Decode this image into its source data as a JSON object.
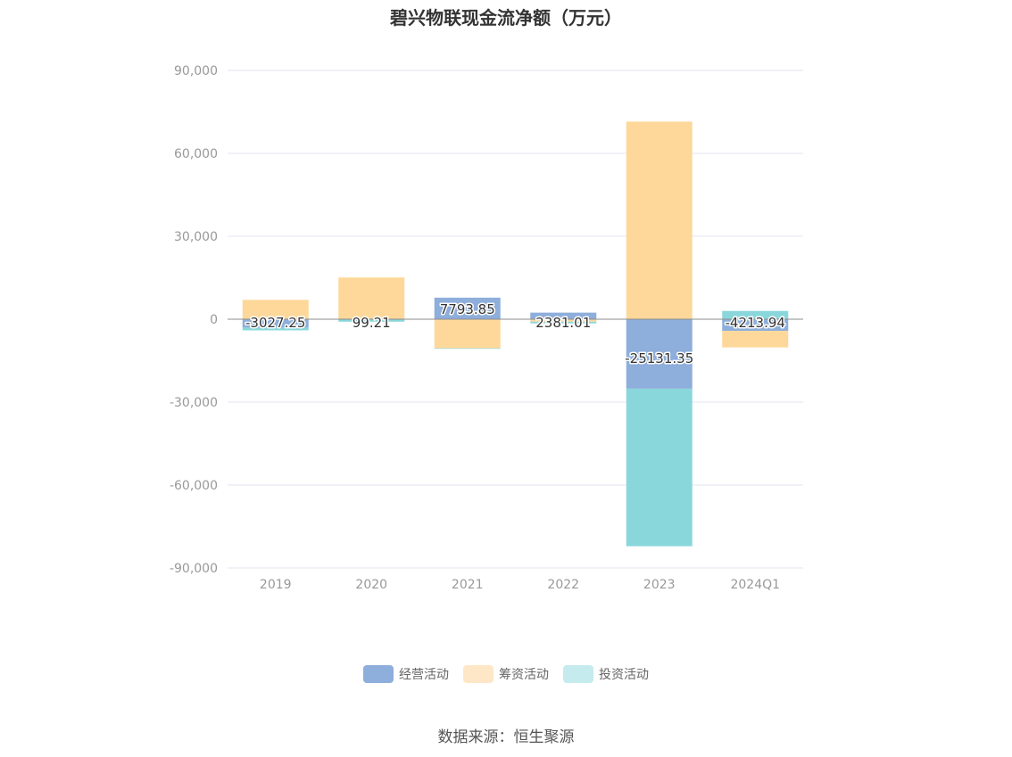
{
  "title": "碧兴物联现金流净额（万元）",
  "source": "数据来源：恒生聚源",
  "chart_data": {
    "type": "bar",
    "stacked": true,
    "categories": [
      "2019",
      "2020",
      "2021",
      "2022",
      "2023",
      "2024Q1"
    ],
    "ylim": [
      -90000,
      90000
    ],
    "yticks": [
      90000,
      60000,
      30000,
      0,
      -30000,
      -60000,
      -90000
    ],
    "ytick_labels": [
      "90,000",
      "60,000",
      "30,000",
      "0",
      "-30,000",
      "-60,000",
      "-90,000"
    ],
    "grid": true,
    "legend_position": "bottom",
    "series": [
      {
        "name": "经营活动",
        "color": "#8eaedb",
        "legend_color": "#8eaedb",
        "values": [
          -3027.25,
          99.21,
          7793.85,
          2381.01,
          -25131.35,
          -4213.94
        ],
        "labels": [
          "-3027.25",
          "99.21",
          "7793.85",
          "2381.01",
          "-25131.35",
          "-4213.94"
        ]
      },
      {
        "name": "筹资活动",
        "color": "#fed89a",
        "legend_color": "#fee7c6",
        "values": [
          7000,
          15000,
          -10500,
          -900,
          71500,
          -6000
        ]
      },
      {
        "name": "投资活动",
        "color": "#8ad7db",
        "legend_color": "#c5ebee",
        "values": [
          -1000,
          -900,
          -200,
          -600,
          -57000,
          3000
        ]
      }
    ]
  }
}
